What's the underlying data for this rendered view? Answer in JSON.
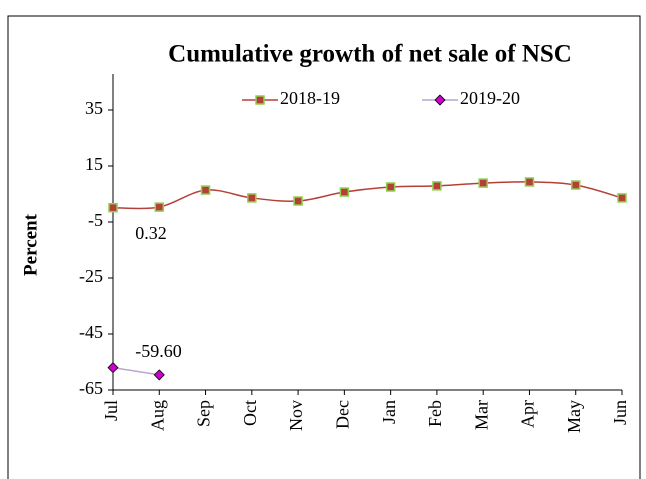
{
  "chart_data": {
    "type": "line",
    "title": "Cumulative growth of net sale of NSC",
    "y_label": "Percent",
    "categories": [
      "Jul",
      "Aug",
      "Sep",
      "Oct",
      "Nov",
      "Dec",
      "Jan",
      "Feb",
      "Mar",
      "Apr",
      "May",
      "Jun"
    ],
    "series": [
      {
        "name": "2018-19",
        "color": "#b5403a",
        "marker_color": "#8fd14f",
        "marker": "square",
        "values": [
          0.1,
          0.32,
          6.4,
          3.6,
          2.5,
          5.7,
          7.5,
          7.9,
          8.9,
          9.3,
          8.2,
          3.6
        ],
        "value_labels": [
          null,
          "0.32",
          null,
          null,
          null,
          null,
          null,
          null,
          null,
          null,
          null,
          null
        ]
      },
      {
        "name": "2019-20",
        "color": "#b9a6d3",
        "marker_color": "#cc00cc",
        "marker": "diamond",
        "values": [
          -57.0,
          -59.6,
          null,
          null,
          null,
          null,
          null,
          null,
          null,
          null,
          null,
          null
        ],
        "value_labels": [
          null,
          "-59.60",
          null,
          null,
          null,
          null,
          null,
          null,
          null,
          null,
          null,
          null
        ]
      }
    ],
    "ylim": [
      -65,
      45
    ],
    "yticks": [
      35,
      15,
      -5,
      -25,
      -45,
      -65
    ],
    "grid": false,
    "legend": "top"
  }
}
